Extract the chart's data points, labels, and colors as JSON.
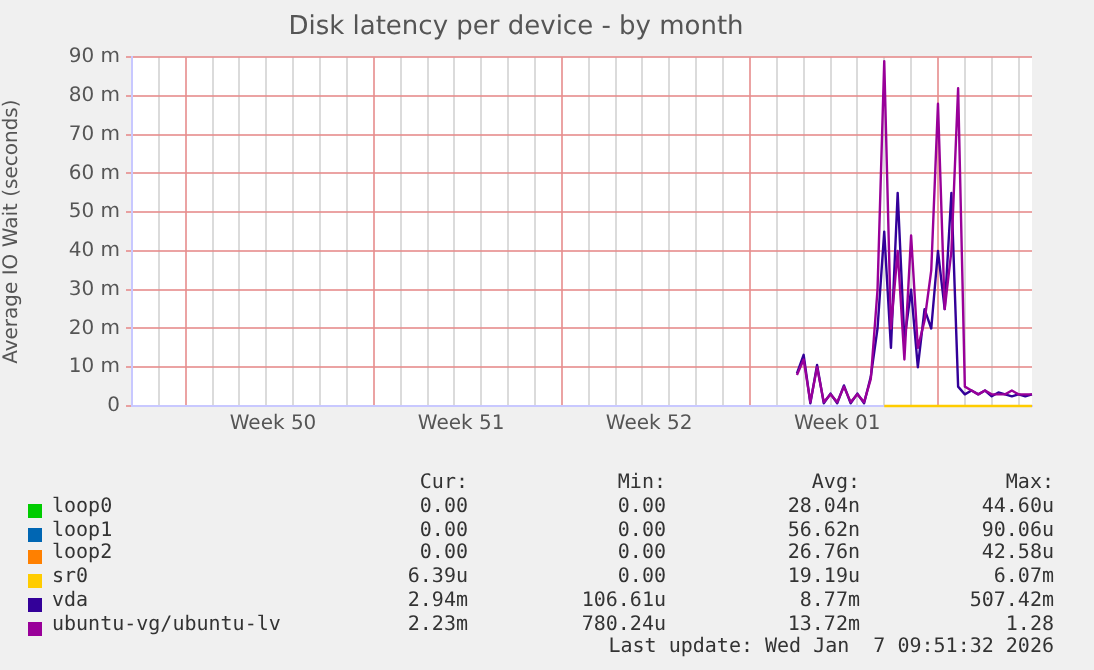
{
  "chart_data": {
    "type": "line",
    "title": "Disk latency per device - by month",
    "ylabel": "Average IO Wait (seconds)",
    "categories": [
      null,
      null,
      null,
      null,
      null,
      null,
      null,
      null,
      null,
      null,
      null,
      null,
      null,
      null,
      null,
      null,
      null,
      null,
      null,
      null,
      null,
      "Week 50",
      null,
      null,
      null,
      null,
      null,
      null,
      null,
      null,
      null,
      null,
      null,
      null,
      null,
      null,
      null,
      null,
      null,
      null,
      null,
      null,
      null,
      null,
      null,
      null,
      null,
      null,
      null,
      "Week 51",
      null,
      null,
      null,
      null,
      null,
      null,
      null,
      null,
      null,
      null,
      null,
      null,
      null,
      null,
      null,
      null,
      null,
      null,
      null,
      null,
      null,
      null,
      null,
      null,
      null,
      null,
      null,
      "Week 52",
      null,
      null,
      null,
      null,
      null,
      null,
      null,
      null,
      null,
      null,
      null,
      null,
      null,
      null,
      null,
      null,
      null,
      null,
      null,
      null,
      null,
      null,
      null,
      null,
      null,
      null,
      null,
      "Week 01",
      null,
      null,
      null,
      null,
      null,
      null,
      null,
      null,
      null,
      null,
      null,
      null,
      null,
      null,
      null,
      null,
      null,
      null,
      null,
      null,
      null,
      null,
      null,
      null,
      null,
      null,
      null,
      null,
      null
    ],
    "ylim": [
      0,
      90
    ],
    "yticks": [
      0,
      {
        "value": 10,
        "label": "10 m"
      },
      {
        "value": 20,
        "label": "20 m"
      },
      {
        "value": 30,
        "label": "30 m"
      },
      {
        "value": 40,
        "label": "40 m"
      },
      {
        "value": 50,
        "label": "50 m"
      },
      {
        "value": 60,
        "label": "60 m"
      },
      {
        "value": 70,
        "label": "70 m"
      },
      {
        "value": 80,
        "label": "80 m"
      },
      {
        "value": 90,
        "label": "90 m"
      }
    ],
    "grid": true,
    "legend": "bottom",
    "marker": "none",
    "line_style": "solid",
    "series": [
      {
        "name": "loop0",
        "color": "#00cc00",
        "values": [
          null,
          null,
          null,
          null,
          null,
          null,
          null,
          null,
          null,
          null,
          null,
          null,
          null,
          null,
          null,
          null,
          null,
          null,
          null,
          null,
          null,
          null,
          null,
          null,
          null,
          null,
          null,
          null,
          null,
          null,
          null,
          null,
          null,
          null,
          null,
          null,
          null,
          null,
          null,
          null,
          null,
          null,
          null,
          null,
          null,
          null,
          null,
          null,
          null,
          null,
          null,
          null,
          null,
          null,
          null,
          null,
          null,
          null,
          null,
          null,
          null,
          null,
          null,
          null,
          null,
          null,
          null,
          null,
          null,
          null,
          null,
          null,
          null,
          null,
          null,
          null,
          null,
          null,
          null,
          null,
          null,
          null,
          null,
          null,
          null,
          null,
          null,
          null,
          null,
          null,
          null,
          null,
          null,
          null,
          null,
          null,
          null,
          null,
          null,
          null,
          null,
          null,
          null,
          null,
          null,
          null,
          null,
          null,
          null,
          null,
          null,
          null,
          null,
          null,
          null,
          null,
          null,
          null,
          null,
          null,
          null,
          null,
          null,
          null,
          null,
          null,
          null,
          null,
          null,
          null,
          null,
          null,
          null,
          null,
          null
        ]
      },
      {
        "name": "loop1",
        "color": "#0066b3",
        "values": [
          null,
          null,
          null,
          null,
          null,
          null,
          null,
          null,
          null,
          null,
          null,
          null,
          null,
          null,
          null,
          null,
          null,
          null,
          null,
          null,
          null,
          null,
          null,
          null,
          null,
          null,
          null,
          null,
          null,
          null,
          null,
          null,
          null,
          null,
          null,
          null,
          null,
          null,
          null,
          null,
          null,
          null,
          null,
          null,
          null,
          null,
          null,
          null,
          null,
          null,
          null,
          null,
          null,
          null,
          null,
          null,
          null,
          null,
          null,
          null,
          null,
          null,
          null,
          null,
          null,
          null,
          null,
          null,
          null,
          null,
          null,
          null,
          null,
          null,
          null,
          null,
          null,
          null,
          null,
          null,
          null,
          null,
          null,
          null,
          null,
          null,
          null,
          null,
          null,
          null,
          null,
          null,
          null,
          null,
          null,
          null,
          null,
          null,
          null,
          null,
          null,
          null,
          null,
          null,
          null,
          null,
          null,
          null,
          null,
          null,
          null,
          null,
          null,
          null,
          null,
          null,
          null,
          null,
          null,
          null,
          null,
          null,
          null,
          null,
          null,
          null,
          null,
          null,
          null,
          null,
          null,
          null,
          null,
          null,
          null
        ]
      },
      {
        "name": "loop2",
        "color": "#ff8000",
        "values": [
          null,
          null,
          null,
          null,
          null,
          null,
          null,
          null,
          null,
          null,
          null,
          null,
          null,
          null,
          null,
          null,
          null,
          null,
          null,
          null,
          null,
          null,
          null,
          null,
          null,
          null,
          null,
          null,
          null,
          null,
          null,
          null,
          null,
          null,
          null,
          null,
          null,
          null,
          null,
          null,
          null,
          null,
          null,
          null,
          null,
          null,
          null,
          null,
          null,
          null,
          null,
          null,
          null,
          null,
          null,
          null,
          null,
          null,
          null,
          null,
          null,
          null,
          null,
          null,
          null,
          null,
          null,
          null,
          null,
          null,
          null,
          null,
          null,
          null,
          null,
          null,
          null,
          null,
          null,
          null,
          null,
          null,
          null,
          null,
          null,
          null,
          null,
          null,
          null,
          null,
          null,
          null,
          null,
          null,
          null,
          null,
          null,
          null,
          null,
          null,
          null,
          null,
          null,
          null,
          null,
          null,
          null,
          null,
          null,
          null,
          null,
          null,
          null,
          null,
          null,
          null,
          null,
          null,
          null,
          null,
          null,
          null,
          null,
          null,
          null,
          null,
          null,
          null,
          null,
          null,
          null,
          null,
          null,
          null,
          null
        ]
      },
      {
        "name": "sr0",
        "color": "#ffcc00",
        "values": [
          null,
          null,
          null,
          null,
          null,
          null,
          null,
          null,
          null,
          null,
          null,
          null,
          null,
          null,
          null,
          null,
          null,
          null,
          null,
          null,
          null,
          null,
          null,
          null,
          null,
          null,
          null,
          null,
          null,
          null,
          null,
          null,
          null,
          null,
          null,
          null,
          null,
          null,
          null,
          null,
          null,
          null,
          null,
          null,
          null,
          null,
          null,
          null,
          null,
          null,
          null,
          null,
          null,
          null,
          null,
          null,
          null,
          null,
          null,
          null,
          null,
          null,
          null,
          null,
          null,
          null,
          null,
          null,
          null,
          null,
          null,
          null,
          null,
          null,
          null,
          null,
          null,
          null,
          null,
          null,
          null,
          null,
          null,
          null,
          null,
          null,
          null,
          null,
          null,
          null,
          null,
          null,
          null,
          null,
          null,
          null,
          null,
          null,
          null,
          null,
          null,
          null,
          null,
          null,
          null,
          null,
          null,
          null,
          null,
          null,
          null,
          null,
          0,
          0,
          0,
          0,
          0,
          0,
          0,
          0,
          0,
          0,
          0,
          0,
          0,
          0,
          0,
          0,
          0,
          0,
          0,
          0,
          0,
          0,
          0
        ]
      },
      {
        "name": "vda",
        "color": "#330099",
        "values": [
          null,
          null,
          null,
          null,
          null,
          null,
          null,
          null,
          null,
          null,
          null,
          null,
          null,
          null,
          null,
          null,
          null,
          null,
          null,
          null,
          null,
          null,
          null,
          null,
          null,
          null,
          null,
          null,
          null,
          null,
          null,
          null,
          null,
          null,
          null,
          null,
          null,
          null,
          null,
          null,
          null,
          null,
          null,
          null,
          null,
          null,
          null,
          null,
          null,
          null,
          null,
          null,
          null,
          null,
          null,
          null,
          null,
          null,
          null,
          null,
          null,
          null,
          null,
          null,
          null,
          null,
          null,
          null,
          null,
          null,
          null,
          null,
          null,
          null,
          null,
          null,
          null,
          null,
          null,
          null,
          null,
          null,
          null,
          null,
          null,
          null,
          null,
          null,
          null,
          null,
          null,
          null,
          null,
          null,
          null,
          null,
          null,
          null,
          null,
          8.4,
          13.2,
          0.7,
          10.6,
          0.7,
          3.2,
          0.7,
          5.3,
          0.7,
          3.2,
          0.7,
          7.6,
          20,
          45,
          15,
          55,
          17,
          30,
          10,
          25,
          20,
          40,
          25,
          55,
          5,
          3,
          4,
          3,
          4,
          2.5,
          3.5,
          3,
          2.5,
          3,
          2.5,
          3
        ]
      },
      {
        "name": "ubuntu-vg/ubuntu-lv",
        "color": "#990099",
        "values": [
          null,
          null,
          null,
          null,
          null,
          null,
          null,
          null,
          null,
          null,
          null,
          null,
          null,
          null,
          null,
          null,
          null,
          null,
          null,
          null,
          null,
          null,
          null,
          null,
          null,
          null,
          null,
          null,
          null,
          null,
          null,
          null,
          null,
          null,
          null,
          null,
          null,
          null,
          null,
          null,
          null,
          null,
          null,
          null,
          null,
          null,
          null,
          null,
          null,
          null,
          null,
          null,
          null,
          null,
          null,
          null,
          null,
          null,
          null,
          null,
          null,
          null,
          null,
          null,
          null,
          null,
          null,
          null,
          null,
          null,
          null,
          null,
          null,
          null,
          null,
          null,
          null,
          null,
          null,
          null,
          null,
          null,
          null,
          null,
          null,
          null,
          null,
          null,
          null,
          null,
          null,
          null,
          null,
          null,
          null,
          null,
          null,
          null,
          null,
          8,
          12,
          1,
          10,
          1,
          3,
          1,
          5,
          1,
          3,
          1,
          7,
          30,
          89,
          20,
          40,
          12,
          44,
          15,
          22,
          35,
          78,
          25,
          40,
          82,
          5,
          4,
          3,
          4,
          3,
          3,
          3,
          4,
          3,
          3,
          3
        ]
      }
    ],
    "annotations": [
      "Cur:",
      "Min:",
      "Avg:",
      "Max:",
      "0.00",
      "0.00",
      "28.04n",
      "44.60u",
      "0.00",
      "0.00",
      "56.62n",
      "90.06u",
      "0.00",
      "0.00",
      "26.76n",
      "42.58u",
      "6.39u",
      "0.00",
      "19.19u",
      "6.07m",
      "2.94m",
      "106.61u",
      "8.77m",
      "507.42m",
      "2.23m",
      "780.24u",
      "13.72m",
      "1.28",
      "Last update: Wed Jan  7 09:51:32 2026"
    ]
  }
}
